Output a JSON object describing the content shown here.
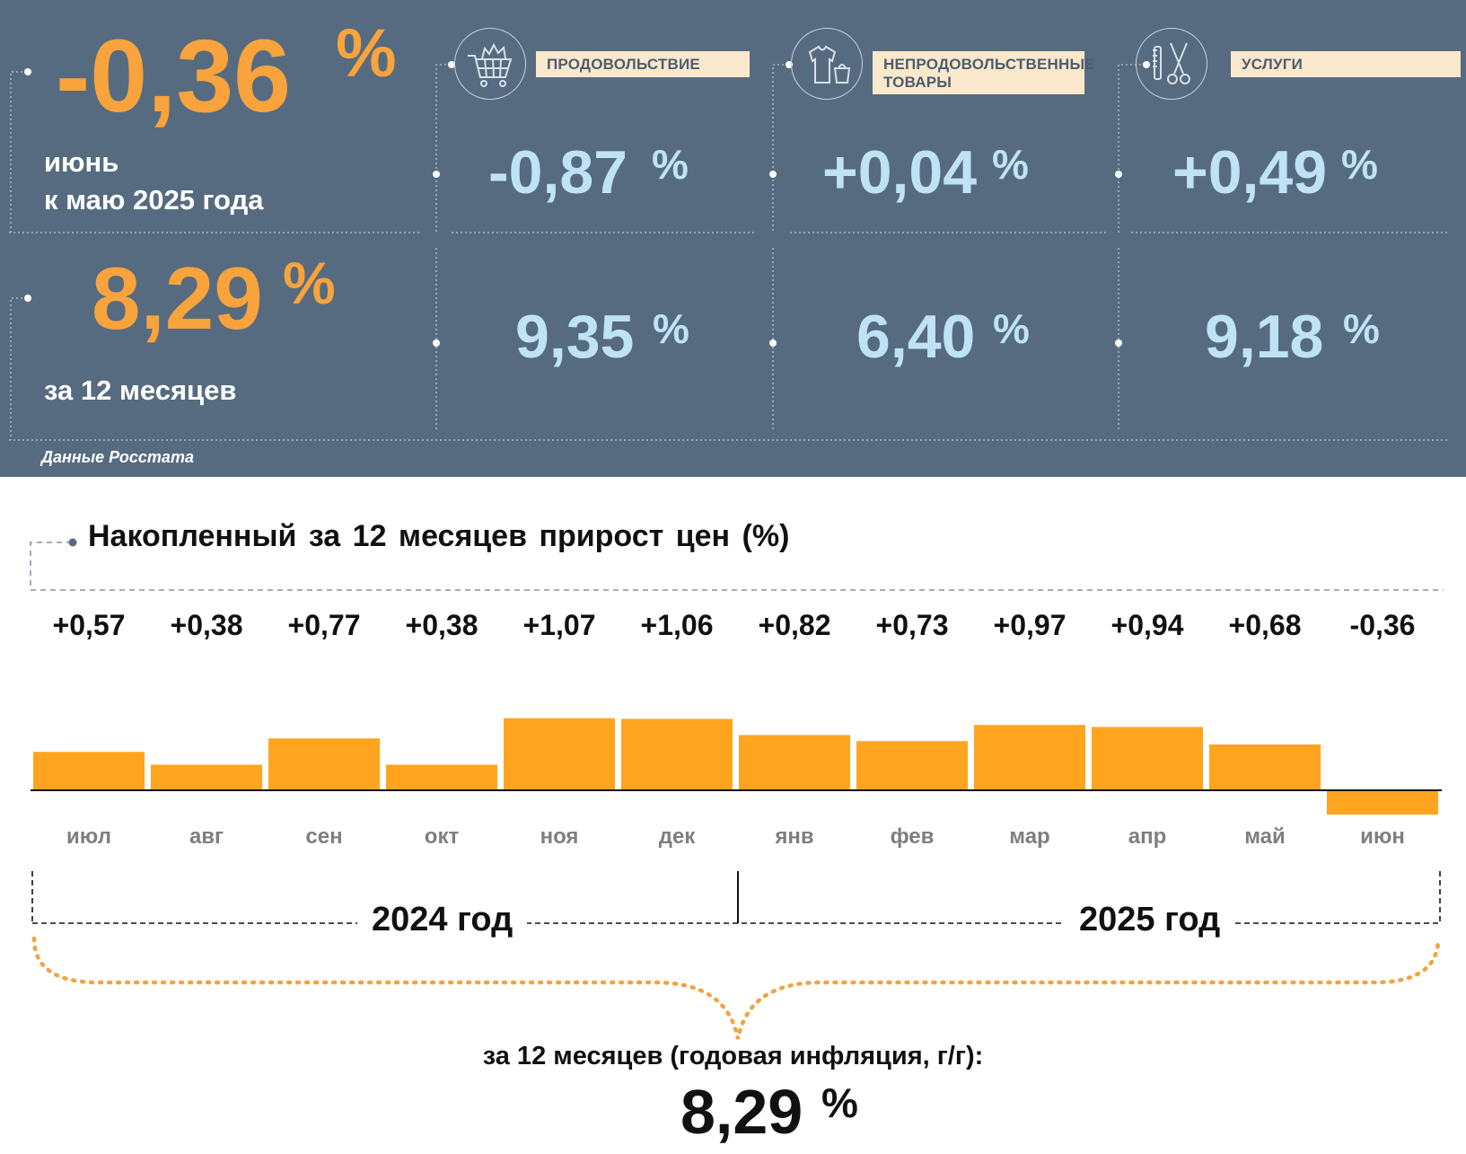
{
  "header": {
    "monthly": {
      "value": "-0,36",
      "unit": "%",
      "line1": "июнь",
      "line2": "к маю 2025 года"
    },
    "annual": {
      "value": "8,29",
      "unit": "%",
      "label": "за 12 месяцев"
    },
    "source": "Данные Росстата",
    "categories": [
      {
        "label": "ПРОДОВОЛЬСТВИЕ",
        "icon": "shopping-cart-icon",
        "monthly": "-0,87",
        "annual": "9,35",
        "unit": "%"
      },
      {
        "label": "НЕПРОДОВОЛЬСТВЕННЫЕ ТОВАРЫ",
        "icon": "clothing-icon",
        "monthly": "+0,04",
        "annual": "6,40",
        "unit": "%"
      },
      {
        "label": "УСЛУГИ",
        "icon": "scissors-comb-icon",
        "monthly": "+0,49",
        "annual": "9,18",
        "unit": "%"
      }
    ],
    "colors": {
      "panel": "#566b80",
      "accent": "#f8a33c",
      "value_blue": "#bfe3f5",
      "label_bg": "#fae8cd"
    }
  },
  "chart_data": {
    "type": "bar",
    "title": "Накопленный за 12 месяцев прирост цен (%)",
    "categories": [
      "июл",
      "авг",
      "сен",
      "окт",
      "ноя",
      "дек",
      "янв",
      "фев",
      "мар",
      "апр",
      "май",
      "июн"
    ],
    "values": [
      0.57,
      0.38,
      0.77,
      0.38,
      1.07,
      1.06,
      0.82,
      0.73,
      0.97,
      0.94,
      0.68,
      -0.36
    ],
    "value_labels": [
      "+0,57",
      "+0,38",
      "+0,77",
      "+0,38",
      "+1,07",
      "+1,06",
      "+0,82",
      "+0,73",
      "+0,97",
      "+0,94",
      "+0,68",
      "-0,36"
    ],
    "bar_color": "#ffa41f",
    "years": [
      "2024 год",
      "2025 год"
    ],
    "total_label": "за 12 месяцев (годовая инфляция, г/г):",
    "total_value": "8,29",
    "total_unit": "%"
  }
}
